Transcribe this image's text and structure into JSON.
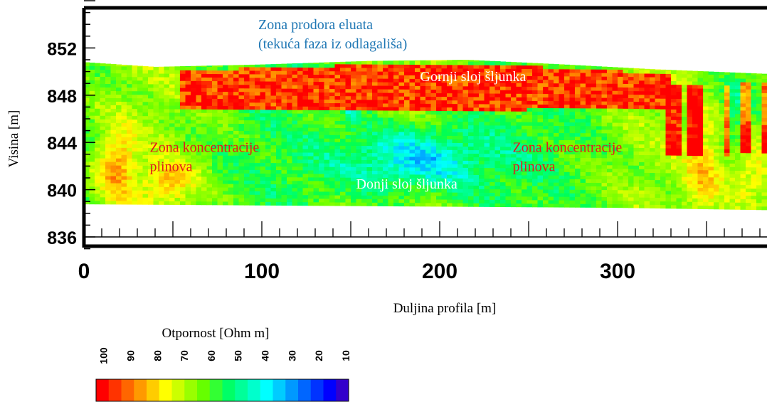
{
  "chart_data": {
    "type": "heatmap",
    "title": "",
    "xlabel": "Duljina profila [m]",
    "ylabel": "Visina [m]",
    "xlim": [
      0,
      385
    ],
    "ylim": [
      835,
      856
    ],
    "x_ticks": [
      "0",
      "100",
      "200",
      "300"
    ],
    "y_ticks": [
      "852",
      "848",
      "844",
      "840",
      "836"
    ],
    "grid": false,
    "colorbar": {
      "title": "Otpornost [Ohm m]",
      "ticks": [
        "100",
        "90",
        "80",
        "70",
        "60",
        "50",
        "40",
        "30",
        "20",
        "10"
      ],
      "range": [
        100,
        10
      ],
      "placement": "bottom-left",
      "colors": [
        "#ff0000",
        "#ff3300",
        "#ff6600",
        "#ff9900",
        "#ffcc00",
        "#ffff00",
        "#ccff00",
        "#99ff00",
        "#66ff00",
        "#33ff33",
        "#00ff66",
        "#00ff99",
        "#00ffcc",
        "#00ffff",
        "#00ccff",
        "#0099ff",
        "#0066ff",
        "#0033ff",
        "#0000ff",
        "#3300cc"
      ]
    },
    "surface_elevation": {
      "x": [
        0,
        40,
        100,
        160,
        215,
        270,
        320,
        385
      ],
      "y": [
        850.8,
        850.4,
        850.6,
        850.9,
        851.0,
        850.6,
        850.2,
        849.8
      ]
    },
    "bottom_elevation": {
      "x": [
        0,
        100,
        200,
        300,
        385
      ],
      "y": [
        838.8,
        838.7,
        838.6,
        838.5,
        838.3
      ]
    },
    "annotations": [
      {
        "lines": [
          "Zona prodora eluata",
          "(tekuća faza iz odlagališa)"
        ],
        "color": "#1f77b4",
        "x": 98,
        "y": 853.6
      },
      {
        "lines": [
          "Gornji sloj šljunka"
        ],
        "color": "#ffffff",
        "x": 189,
        "y": 849.2
      },
      {
        "lines": [
          "Zona koncentracije",
          "plinova"
        ],
        "color": "#e31a1c",
        "x": 37,
        "y": 843.2
      },
      {
        "lines": [
          "Donji sloj šljunka"
        ],
        "color": "#ffffff",
        "x": 153,
        "y": 840.1
      },
      {
        "lines": [
          "Zona koncentracije",
          "plinova"
        ],
        "color": "#e31a1c",
        "x": 241,
        "y": 843.2
      }
    ]
  }
}
